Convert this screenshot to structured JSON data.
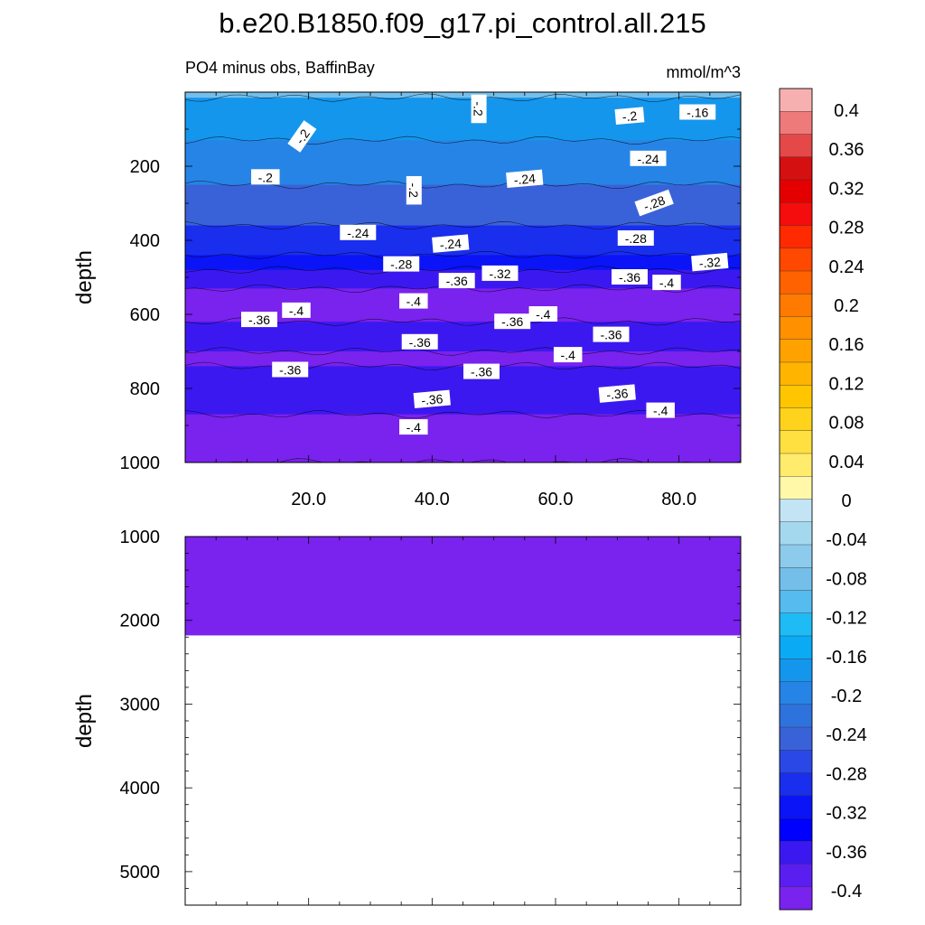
{
  "figure": {
    "title": "b.e20.B1850.f09_g17.pi_control.all.215",
    "subtitle_left": "PO4 minus obs, BaffinBay",
    "subtitle_right": "mmol/m^3"
  },
  "chart_data": [
    {
      "type": "contour",
      "name": "upper-panel",
      "xlabel": "",
      "ylabel": "depth",
      "xlim": [
        0,
        90
      ],
      "ylim": [
        0,
        1000
      ],
      "y_inverted": true,
      "x_ticks": [
        20,
        40,
        60,
        80
      ],
      "x_tick_labels": [
        "20.0",
        "40.0",
        "60.0",
        "80.0"
      ],
      "y_ticks": [
        200,
        400,
        600,
        800,
        1000
      ],
      "y_tick_labels": [
        "200",
        "400",
        "600",
        "800",
        "1000"
      ],
      "bands": [
        {
          "top": 0,
          "bottom": 15,
          "value": -0.08
        },
        {
          "top": 15,
          "bottom": 130,
          "value": -0.16
        },
        {
          "top": 130,
          "bottom": 250,
          "value": -0.2
        },
        {
          "top": 250,
          "bottom": 360,
          "value": -0.24
        },
        {
          "top": 360,
          "bottom": 440,
          "value": -0.28
        },
        {
          "top": 440,
          "bottom": 480,
          "value": -0.32
        },
        {
          "top": 480,
          "bottom": 530,
          "value": -0.36
        },
        {
          "top": 530,
          "bottom": 620,
          "value": -0.4
        },
        {
          "top": 620,
          "bottom": 700,
          "value": -0.36
        },
        {
          "top": 700,
          "bottom": 740,
          "value": -0.4
        },
        {
          "top": 740,
          "bottom": 870,
          "value": -0.36
        },
        {
          "top": 870,
          "bottom": 1000,
          "value": -0.4
        }
      ],
      "contour_labels": [
        {
          "text": "-.2",
          "x": 47.5,
          "y": 45,
          "angle": 90
        },
        {
          "text": "-.2",
          "x": 72,
          "y": 65,
          "angle": -5
        },
        {
          "text": "-.16",
          "x": 83,
          "y": 55,
          "angle": 0
        },
        {
          "text": "-.2",
          "x": 19,
          "y": 120,
          "angle": -55
        },
        {
          "text": "-.24",
          "x": 75,
          "y": 180,
          "angle": 0
        },
        {
          "text": "-.2",
          "x": 13,
          "y": 230,
          "angle": 0
        },
        {
          "text": "-.24",
          "x": 55,
          "y": 235,
          "angle": -5
        },
        {
          "text": "-.2",
          "x": 37,
          "y": 265,
          "angle": 90
        },
        {
          "text": "-.28",
          "x": 76,
          "y": 300,
          "angle": -20
        },
        {
          "text": "-.24",
          "x": 28,
          "y": 380,
          "angle": 0
        },
        {
          "text": "-.24",
          "x": 43,
          "y": 410,
          "angle": -5
        },
        {
          "text": "-.28",
          "x": 73,
          "y": 395,
          "angle": 0
        },
        {
          "text": "-.28",
          "x": 35,
          "y": 465,
          "angle": 0
        },
        {
          "text": "-.32",
          "x": 51,
          "y": 490,
          "angle": 0
        },
        {
          "text": "-.32",
          "x": 85,
          "y": 460,
          "angle": -5
        },
        {
          "text": "-.36",
          "x": 44,
          "y": 510,
          "angle": 0
        },
        {
          "text": "-.36",
          "x": 72,
          "y": 500,
          "angle": 0
        },
        {
          "text": "-.4",
          "x": 78,
          "y": 515,
          "angle": 0
        },
        {
          "text": "-.4",
          "x": 37,
          "y": 565,
          "angle": 0
        },
        {
          "text": "-.4",
          "x": 18,
          "y": 590,
          "angle": 0
        },
        {
          "text": "-.36",
          "x": 12,
          "y": 615,
          "angle": 0
        },
        {
          "text": "-.4",
          "x": 58,
          "y": 600,
          "angle": 0
        },
        {
          "text": "-.36",
          "x": 53,
          "y": 620,
          "angle": 0
        },
        {
          "text": "-.36",
          "x": 69,
          "y": 655,
          "angle": 0
        },
        {
          "text": "-.36",
          "x": 38,
          "y": 675,
          "angle": 0
        },
        {
          "text": "-.4",
          "x": 62,
          "y": 710,
          "angle": 0
        },
        {
          "text": "-.36",
          "x": 17,
          "y": 750,
          "angle": 0
        },
        {
          "text": "-.36",
          "x": 48,
          "y": 755,
          "angle": 0
        },
        {
          "text": "-.36",
          "x": 40,
          "y": 830,
          "angle": -5
        },
        {
          "text": "-.36",
          "x": 70,
          "y": 815,
          "angle": -5
        },
        {
          "text": "-.4",
          "x": 77,
          "y": 860,
          "angle": 0
        },
        {
          "text": "-.4",
          "x": 37,
          "y": 905,
          "angle": 0
        }
      ]
    },
    {
      "type": "contour",
      "name": "lower-panel",
      "xlabel": "",
      "ylabel": "depth",
      "xlim": [
        0,
        90
      ],
      "ylim": [
        1000,
        5400
      ],
      "y_inverted": true,
      "y_ticks": [
        1000,
        2000,
        3000,
        4000,
        5000
      ],
      "y_tick_labels": [
        "1000",
        "2000",
        "3000",
        "4000",
        "5000"
      ],
      "bands": [
        {
          "top": 1000,
          "bottom": 2180,
          "value": -0.4
        }
      ]
    }
  ],
  "colorbar": {
    "labels": [
      "0.4",
      "0.36",
      "0.32",
      "0.28",
      "0.24",
      "0.2",
      "0.16",
      "0.12",
      "0.08",
      "0.04",
      "0",
      "-0.04",
      "-0.08",
      "-0.12",
      "-0.16",
      "-0.2",
      "-0.24",
      "-0.28",
      "-0.32",
      "-0.36",
      "-0.4"
    ],
    "colors": [
      "#f7b0b0",
      "#ee7a7a",
      "#e44848",
      "#d51010",
      "#e40000",
      "#f50c0c",
      "#ff2a00",
      "#ff4800",
      "#ff6200",
      "#ff7a00",
      "#ff9000",
      "#ffa200",
      "#ffb400",
      "#ffc600",
      "#ffd21c",
      "#ffe040",
      "#ffec6c",
      "#fff8a8",
      "#c2e4f5",
      "#a4d8ef",
      "#8ccbec",
      "#74bfea",
      "#56bbef",
      "#1ebbf5",
      "#0aaaf5",
      "#1596ed",
      "#2684e6",
      "#2e72de",
      "#3a62d8",
      "#2a48e6",
      "#1a2eee",
      "#0a14f6",
      "#0000ff",
      "#3c18f0",
      "#5a1ef0",
      "#7a22ee"
    ]
  }
}
